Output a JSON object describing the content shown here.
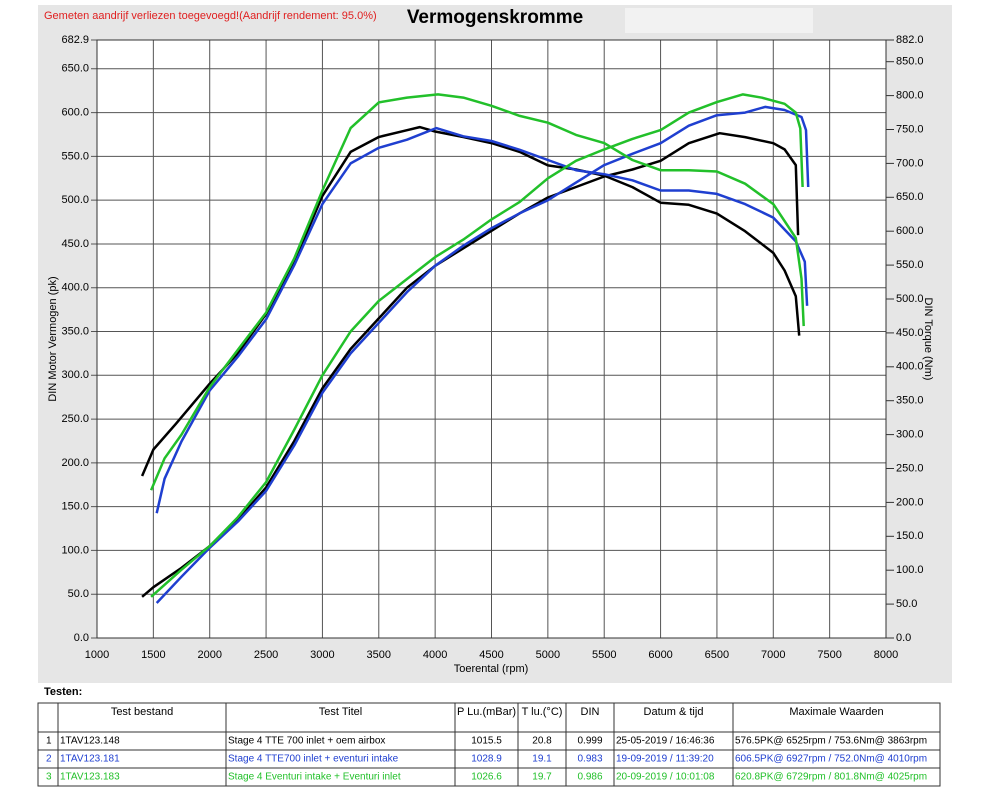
{
  "chart_data": {
    "type": "line",
    "title": "Vermogenskromme",
    "annotation": "Gemeten aandrijf verliezen toegevoegd!(Aandrijf rendement: 95.0%)",
    "xlabel": "Toerental (rpm)",
    "ylabel": "DIN Motor Vermogen (pk)",
    "y2label": "DIN Torque (Nm)",
    "xlim": [
      1000,
      8000
    ],
    "xticks": [
      1000,
      1500,
      2000,
      2500,
      3000,
      3500,
      4000,
      4500,
      5000,
      5500,
      6000,
      6500,
      7000,
      7500,
      8000
    ],
    "ylim": [
      0,
      682.9
    ],
    "yticks": [
      {
        "value": 0,
        "label": "0.0"
      },
      {
        "value": 50,
        "label": "50.0"
      },
      {
        "value": 100,
        "label": "100.0"
      },
      {
        "value": 150,
        "label": "150.0"
      },
      {
        "value": 200,
        "label": "200.0"
      },
      {
        "value": 250,
        "label": "250.0"
      },
      {
        "value": 300,
        "label": "300.0"
      },
      {
        "value": 350,
        "label": "350.0"
      },
      {
        "value": 400,
        "label": "400.0"
      },
      {
        "value": 450,
        "label": "450.0"
      },
      {
        "value": 500,
        "label": "500.0"
      },
      {
        "value": 550,
        "label": "550.0"
      },
      {
        "value": 600,
        "label": "600.0"
      },
      {
        "value": 650,
        "label": "650.0"
      },
      {
        "value": 682.9,
        "label": "682.9"
      }
    ],
    "y2lim": [
      0,
      882
    ],
    "y2ticks": [
      {
        "value": 0,
        "label": "0.0"
      },
      {
        "value": 50,
        "label": "50.0"
      },
      {
        "value": 100,
        "label": "100.0"
      },
      {
        "value": 150,
        "label": "150.0"
      },
      {
        "value": 200,
        "label": "200.0"
      },
      {
        "value": 250,
        "label": "250.0"
      },
      {
        "value": 300,
        "label": "300.0"
      },
      {
        "value": 350,
        "label": "350.0"
      },
      {
        "value": 400,
        "label": "400.0"
      },
      {
        "value": 450,
        "label": "450.0"
      },
      {
        "value": 500,
        "label": "500.0"
      },
      {
        "value": 550,
        "label": "550.0"
      },
      {
        "value": 600,
        "label": "600.0"
      },
      {
        "value": 650,
        "label": "650.0"
      },
      {
        "value": 700,
        "label": "700.0"
      },
      {
        "value": 750,
        "label": "750.0"
      },
      {
        "value": 800,
        "label": "800.0"
      },
      {
        "value": 850,
        "label": "850.0"
      },
      {
        "value": 882,
        "label": "882.0"
      }
    ],
    "grid": true,
    "series": [
      {
        "color": "#000000",
        "axis": "y",
        "x": [
          1400,
          1500,
          1750,
          2000,
          2250,
          2500,
          2750,
          3000,
          3250,
          3500,
          3750,
          4000,
          4250,
          4500,
          4750,
          5000,
          5250,
          5500,
          5750,
          6000,
          6250,
          6525,
          6750,
          7000,
          7100,
          7200,
          7220
        ],
        "values": [
          47,
          58,
          80,
          105,
          135,
          172,
          225,
          285,
          330,
          365,
          400,
          425,
          445,
          465,
          485,
          503,
          515,
          527,
          535,
          545,
          565,
          576.5,
          572,
          565,
          558,
          540,
          460
        ]
      },
      {
        "color": "#000000",
        "axis": "y2",
        "x": [
          1400,
          1500,
          1700,
          2000,
          2250,
          2500,
          2750,
          3000,
          3250,
          3500,
          3750,
          3863,
          4000,
          4250,
          4500,
          4750,
          5000,
          5250,
          5500,
          5750,
          6000,
          6250,
          6500,
          6750,
          7000,
          7100,
          7200,
          7230
        ],
        "values": [
          239,
          278,
          316,
          375,
          420,
          478,
          555,
          652,
          717,
          739,
          749,
          753.6,
          747,
          739,
          730,
          717,
          697,
          691,
          682,
          665,
          642,
          639,
          626,
          600,
          568,
          542,
          504,
          446
        ]
      },
      {
        "color": "#1f3fd0",
        "axis": "y",
        "x": [
          1530,
          1750,
          2000,
          2250,
          2500,
          2750,
          3000,
          3250,
          3500,
          3750,
          4000,
          4250,
          4500,
          4750,
          5000,
          5250,
          5500,
          5750,
          6000,
          6250,
          6500,
          6750,
          6927,
          7100,
          7250,
          7290,
          7310
        ],
        "values": [
          40,
          70,
          103,
          133,
          168,
          220,
          280,
          325,
          360,
          395,
          425,
          448,
          468,
          485,
          500,
          520,
          540,
          553,
          565,
          585,
          597,
          600,
          606.5,
          603,
          595,
          580,
          515
        ]
      },
      {
        "color": "#1f3fd0",
        "axis": "y2",
        "x": [
          1530,
          1600,
          1750,
          2000,
          2250,
          2500,
          2750,
          3000,
          3250,
          3500,
          3750,
          4010,
          4250,
          4500,
          4750,
          5000,
          5250,
          5500,
          5750,
          6000,
          6250,
          6500,
          6750,
          7000,
          7200,
          7280,
          7300
        ],
        "values": [
          184,
          235,
          290,
          365,
          415,
          470,
          550,
          640,
          700,
          723,
          735,
          752,
          740,
          733,
          720,
          705,
          690,
          684,
          675,
          660,
          660,
          655,
          640,
          620,
          585,
          555,
          490
        ]
      },
      {
        "color": "#22c02a",
        "axis": "y",
        "x": [
          1480,
          1750,
          2000,
          2250,
          2500,
          2750,
          3000,
          3250,
          3500,
          3750,
          4000,
          4250,
          4500,
          4750,
          5000,
          5250,
          5500,
          5750,
          6000,
          6250,
          6500,
          6729,
          6900,
          7100,
          7200,
          7240,
          7260
        ],
        "values": [
          47,
          78,
          105,
          138,
          178,
          238,
          300,
          350,
          385,
          410,
          435,
          455,
          478,
          498,
          525,
          545,
          558,
          570,
          580,
          600,
          612,
          620.8,
          617,
          610,
          600,
          582,
          515
        ]
      },
      {
        "color": "#22c02a",
        "axis": "y2",
        "x": [
          1480,
          1600,
          1750,
          2000,
          2250,
          2500,
          2750,
          3000,
          3250,
          3500,
          3750,
          4025,
          4250,
          4500,
          4750,
          5000,
          5250,
          5500,
          5750,
          6000,
          6250,
          6500,
          6750,
          7000,
          7200,
          7250,
          7270
        ],
        "values": [
          218,
          265,
          300,
          370,
          425,
          480,
          560,
          660,
          752,
          790,
          797,
          801.8,
          797,
          785,
          770,
          760,
          742,
          730,
          705,
          690,
          690,
          688,
          670,
          640,
          590,
          530,
          460
        ]
      }
    ]
  },
  "table": {
    "title": "Testen:",
    "header": [
      "",
      "Test bestand",
      "Test Titel",
      "P Lu.(mBar)",
      "T lu.(°C)",
      "DIN",
      "Datum & tijd",
      "Maximale Waarden"
    ],
    "row_colors": [
      "#000000",
      "#1f3fd0",
      "#22c02a"
    ],
    "rows": [
      [
        "1",
        "1TAV123.148",
        "Stage 4 TTE 700  inlet + oem airbox",
        "1015.5",
        "20.8",
        "0.999",
        "25-05-2019 / 16:46:36",
        "576.5PK@ 6525rpm / 753.6Nm@ 3863rpm"
      ],
      [
        "2",
        "1TAV123.181",
        "Stage 4 TTE700 inlet + eventuri intake",
        "1028.9",
        "19.1",
        "0.983",
        "19-09-2019 / 11:39:20",
        "606.5PK@ 6927rpm / 752.0Nm@ 4010rpm"
      ],
      [
        "3",
        "1TAV123.183",
        "Stage 4 Eventuri intake + Eventuri inlet",
        "1026.6",
        "19.7",
        "0.986",
        "20-09-2019 / 10:01:08",
        "620.8PK@ 6729rpm / 801.8Nm@ 4025rpm"
      ]
    ]
  }
}
